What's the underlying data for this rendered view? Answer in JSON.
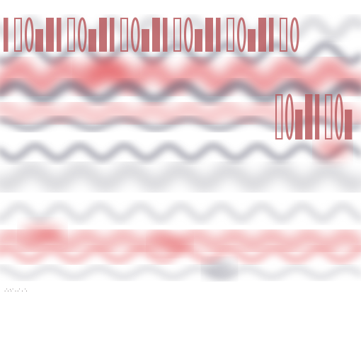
{
  "palette": {
    "background": "#ffffff",
    "red": "#e0454a",
    "rose": "#f0a0a4",
    "slate": "#5a5a6e",
    "grey": "#b9b9bf",
    "title_ink": "#b85a5e",
    "text_ink": "#2a1c1c"
  },
  "artwork": {
    "glyph_icons": [
      "ring-glyph-icon",
      "bar-glyph-icon",
      "heart-glyph-icon",
      "cross-glyph-icon",
      "drop-glyph-icon"
    ]
  },
  "caption": {
    "lines": [
      "·˙· ′·˙ · ·˙ · ˙·",
      "",
      "",
      "",
      ""
    ]
  }
}
